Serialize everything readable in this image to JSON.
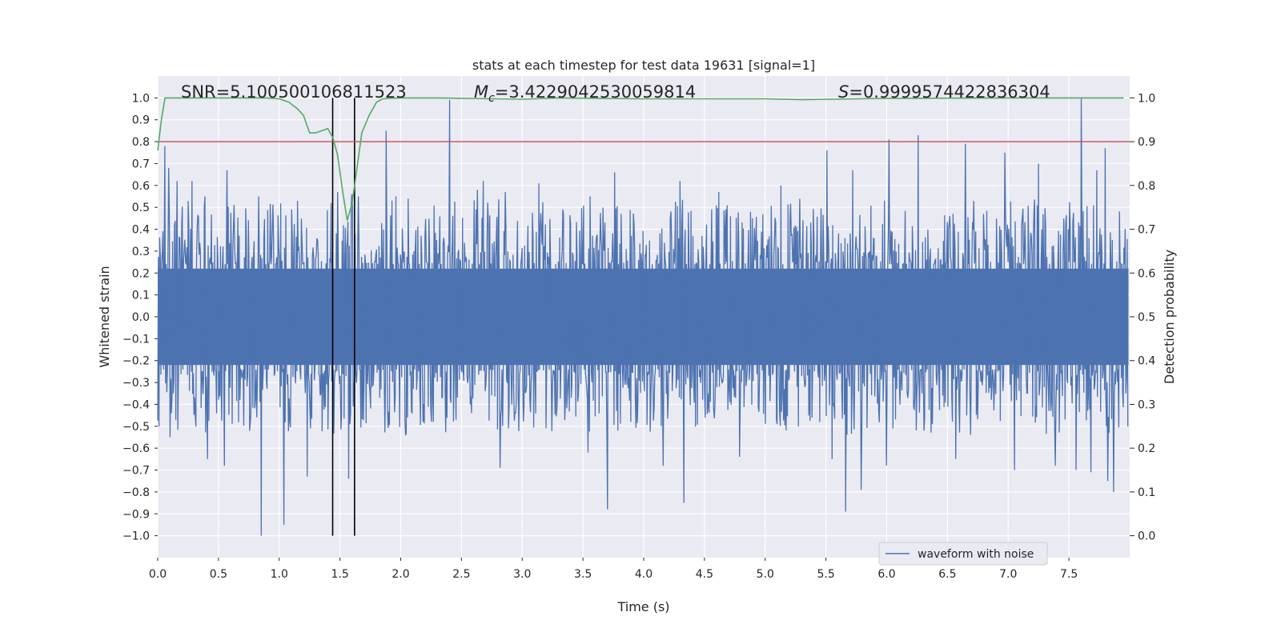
{
  "chart_data": {
    "type": "line",
    "title": "stats at each timestep for test data 19631 [signal=1]",
    "xlabel": "Time (s)",
    "ylabel": "Whitened strain",
    "y2label": "Detection probability",
    "xlim": [
      0.0,
      8.0
    ],
    "ylim": [
      -1.1,
      1.1
    ],
    "y2lim": [
      -0.05,
      1.05
    ],
    "x_ticks": [
      0.0,
      0.5,
      1.0,
      1.5,
      2.0,
      2.5,
      3.0,
      3.5,
      4.0,
      4.5,
      5.0,
      5.5,
      6.0,
      6.5,
      7.0,
      7.5
    ],
    "x_tick_labels": [
      "0.0",
      "0.5",
      "1.0",
      "1.5",
      "2.0",
      "2.5",
      "3.0",
      "3.5",
      "4.0",
      "4.5",
      "5.0",
      "5.5",
      "6.0",
      "6.5",
      "7.0",
      "7.5"
    ],
    "y_ticks": [
      1.0,
      0.9,
      0.8,
      0.7,
      0.6,
      0.5,
      0.4,
      0.3,
      0.2,
      0.1,
      0.0,
      -0.1,
      -0.2,
      -0.3,
      -0.4,
      -0.5,
      -0.6,
      -0.7,
      -0.8,
      -0.9,
      -1.0
    ],
    "y_tick_labels": [
      "1.0",
      "0.9",
      "0.8",
      "0.7",
      "0.6",
      "0.5",
      "0.4",
      "0.3",
      "0.2",
      "0.1",
      "0.0",
      "−0.1",
      "−0.2",
      "−0.3",
      "−0.4",
      "−0.5",
      "−0.6",
      "−0.7",
      "−0.8",
      "−0.9",
      "−1.0"
    ],
    "y2_ticks": [
      1.0,
      0.9,
      0.8,
      0.7,
      0.6,
      0.5,
      0.4,
      0.3,
      0.2,
      0.1,
      0.0
    ],
    "y2_tick_labels": [
      "1.0",
      "0.9",
      "0.8",
      "0.7",
      "0.6",
      "0.5",
      "0.4",
      "0.3",
      "0.2",
      "0.1",
      "0.0"
    ],
    "annotations": {
      "snr": "SNR=5.100500106811523",
      "mc_symbol": "M",
      "mc_sub": "c",
      "mc_value": "=3.4229042530059814",
      "s_symbol": "S",
      "s_value": "=0.9999574422836304"
    },
    "legend": {
      "label": "waveform with noise",
      "location": "lower-right"
    },
    "threshold": {
      "value": 0.9,
      "axis": "y2",
      "color": "#c44e52"
    },
    "vertical_markers": [
      1.44,
      1.62
    ],
    "series": [
      {
        "name": "waveform with noise",
        "axis": "y",
        "color": "#4c72b0",
        "duration": 7.99,
        "peak_events": [
          {
            "t": 0.06,
            "v": 0.78
          },
          {
            "t": 0.09,
            "v": 0.68
          },
          {
            "t": 0.16,
            "v": 0.62
          },
          {
            "t": 0.28,
            "v": 0.62
          },
          {
            "t": 0.39,
            "v": 0.55
          },
          {
            "t": 0.55,
            "v": 0.65
          },
          {
            "t": 0.57,
            "v": 0.67
          },
          {
            "t": 0.83,
            "v": 0.55
          },
          {
            "t": 1.1,
            "v": 0.49
          },
          {
            "t": 1.43,
            "v": 0.52
          },
          {
            "t": 1.48,
            "v": 0.57
          },
          {
            "t": 1.6,
            "v": 0.56
          },
          {
            "t": 1.65,
            "v": 0.55
          },
          {
            "t": 1.88,
            "v": 0.85
          },
          {
            "t": 1.96,
            "v": 0.55
          },
          {
            "t": 2.4,
            "v": 0.99
          },
          {
            "t": 2.63,
            "v": 0.58
          },
          {
            "t": 2.68,
            "v": 0.62
          },
          {
            "t": 2.86,
            "v": 0.57
          },
          {
            "t": 3.14,
            "v": 0.61
          },
          {
            "t": 3.56,
            "v": 0.55
          },
          {
            "t": 3.76,
            "v": 0.66
          },
          {
            "t": 4.3,
            "v": 0.62
          },
          {
            "t": 4.62,
            "v": 0.57
          },
          {
            "t": 5.13,
            "v": 0.6
          },
          {
            "t": 5.51,
            "v": 0.76
          },
          {
            "t": 5.72,
            "v": 0.67
          },
          {
            "t": 6.02,
            "v": 0.81
          },
          {
            "t": 6.26,
            "v": 0.83
          },
          {
            "t": 6.65,
            "v": 0.79
          },
          {
            "t": 6.97,
            "v": 0.75
          },
          {
            "t": 7.25,
            "v": 0.7
          },
          {
            "t": 7.6,
            "v": 1.0
          },
          {
            "t": 7.73,
            "v": 0.67
          },
          {
            "t": 7.8,
            "v": 0.77
          },
          {
            "t": 7.87,
            "v": 0.81
          },
          {
            "t": 0.85,
            "v": -1.0
          },
          {
            "t": 1.04,
            "v": -0.95
          },
          {
            "t": 0.55,
            "v": -0.68
          },
          {
            "t": 0.41,
            "v": -0.65
          },
          {
            "t": 1.23,
            "v": -0.73
          },
          {
            "t": 1.57,
            "v": -0.74
          },
          {
            "t": 2.82,
            "v": -0.69
          },
          {
            "t": 3.7,
            "v": -0.88
          },
          {
            "t": 3.54,
            "v": -0.62
          },
          {
            "t": 4.16,
            "v": -0.68
          },
          {
            "t": 4.33,
            "v": -0.85
          },
          {
            "t": 4.79,
            "v": -0.64
          },
          {
            "t": 5.55,
            "v": -0.65
          },
          {
            "t": 5.66,
            "v": -0.89
          },
          {
            "t": 5.79,
            "v": -0.79
          },
          {
            "t": 6.0,
            "v": -0.68
          },
          {
            "t": 6.57,
            "v": -0.65
          },
          {
            "t": 7.05,
            "v": -0.7
          },
          {
            "t": 7.39,
            "v": -0.68
          },
          {
            "t": 7.56,
            "v": -0.7
          },
          {
            "t": 7.68,
            "v": -0.71
          },
          {
            "t": 7.82,
            "v": -0.75
          },
          {
            "t": 7.87,
            "v": -0.8
          },
          {
            "t": 0.1,
            "v": -0.55
          }
        ]
      },
      {
        "name": "Detection probability",
        "axis": "y2",
        "color": "#55a868",
        "x": [
          0.0,
          0.03,
          0.06,
          0.1,
          0.2,
          0.6,
          0.9,
          1.0,
          1.08,
          1.15,
          1.2,
          1.25,
          1.3,
          1.35,
          1.4,
          1.44,
          1.48,
          1.52,
          1.56,
          1.6,
          1.64,
          1.68,
          1.74,
          1.8,
          1.85,
          1.9,
          2.0,
          2.3,
          3.0,
          3.3,
          4.0,
          5.0,
          5.3,
          6.0,
          7.0,
          7.95
        ],
        "y": [
          0.88,
          0.95,
          1.0,
          1.0,
          1.0,
          1.0,
          1.0,
          0.998,
          0.99,
          0.975,
          0.96,
          0.92,
          0.92,
          0.925,
          0.93,
          0.91,
          0.87,
          0.79,
          0.72,
          0.76,
          0.84,
          0.92,
          0.96,
          0.99,
          0.998,
          0.999,
          1.0,
          1.0,
          0.997,
          1.0,
          0.998,
          0.998,
          0.996,
          0.999,
          1.0,
          1.0
        ]
      }
    ]
  }
}
